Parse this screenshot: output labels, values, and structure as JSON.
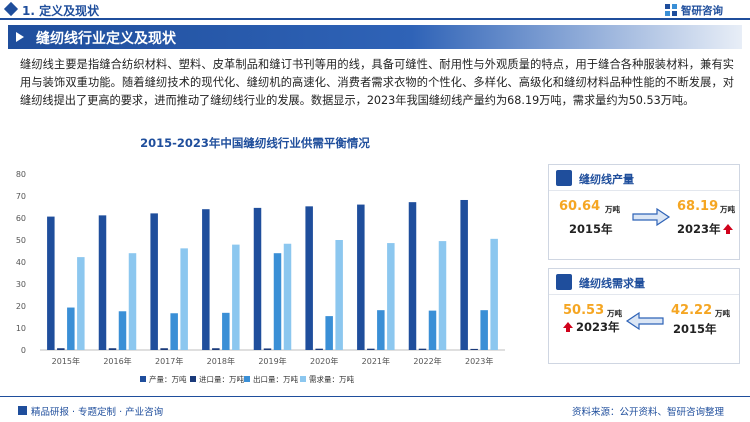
{
  "header": {
    "section_title": "1. 定义及现状",
    "logo_text": "智研咨询"
  },
  "banner": {
    "title": "缝纫线行业定义及现状"
  },
  "intro": {
    "text": "缝纫线主要是指缝合纺织材料、塑料、皮革制品和缝订书刊等用的线，具备可缝性、耐用性与外观质量的特点，用于缝合各种服装材料，兼有实用与装饰双重功能。随着缝纫技术的现代化、缝纫机的高速化、消费者需求衣物的个性化、多样化、高级化和缝纫材料品种性能的不断发展，对缝纫线提出了更高的要求，进而推动了缝纫线行业的发展。数据显示，2023年我国缝纫线产量约为68.19万吨，需求量约为50.53万吨。"
  },
  "chart_data": {
    "type": "bar",
    "title": "2015-2023年中国缝纫线行业供需平衡情况",
    "categories": [
      "2015年",
      "2016年",
      "2017年",
      "2018年",
      "2019年",
      "2020年",
      "2021年",
      "2022年",
      "2023年"
    ],
    "series": [
      {
        "name": "产量：万吨",
        "color": "#1f4e9c",
        "values": [
          60.64,
          61.2,
          62.1,
          64.0,
          64.6,
          65.3,
          66.1,
          67.2,
          68.19
        ]
      },
      {
        "name": "进口量：万吨",
        "color": "#1a3a7a",
        "values": [
          0.8,
          0.8,
          0.8,
          0.8,
          0.7,
          0.6,
          0.6,
          0.6,
          0.5
        ]
      },
      {
        "name": "出口量：万吨",
        "color": "#3a8fd6",
        "values": [
          19.3,
          17.6,
          16.7,
          16.9,
          44.0,
          15.4,
          18.1,
          17.9,
          18.1
        ]
      },
      {
        "name": "需求量：万吨",
        "color": "#8cc7ef",
        "values": [
          42.22,
          44.0,
          46.2,
          47.9,
          48.3,
          50.0,
          48.6,
          49.5,
          50.53
        ]
      }
    ],
    "yticks": [
      0,
      10,
      20,
      30,
      40,
      50,
      60,
      70,
      80
    ],
    "ylim": [
      0,
      80
    ],
    "legend_position": "bottom",
    "grid": false
  },
  "cards": {
    "production": {
      "title": "缝纫线产量",
      "left_value": "60.64",
      "left_unit": "万吨",
      "left_year": "2015年",
      "right_value": "68.19",
      "right_unit": "万吨",
      "right_year": "2023年"
    },
    "demand": {
      "title": "缝纫线需求量",
      "left_value": "50.53",
      "left_unit": "万吨",
      "left_year": "2023年",
      "right_value": "42.22",
      "right_unit": "万吨",
      "right_year": "2015年"
    }
  },
  "footer": {
    "left_text": "精品研报 · 专题定制 · 产业咨询",
    "right_text": "资料来源：公开资料、智研咨询整理"
  },
  "colors": {
    "brand_blue": "#1f4e9c",
    "accent_orange": "#f5a623",
    "up_red": "#d0021b"
  }
}
